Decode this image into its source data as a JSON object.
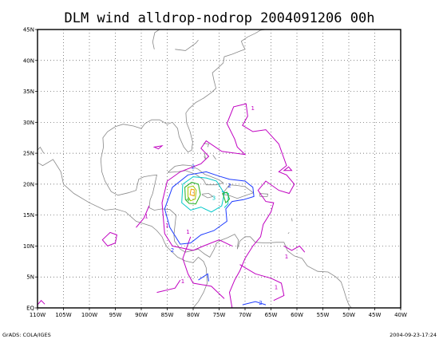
{
  "title": "DLM wind alldrop-nodrop 2004091206 00h",
  "footer": {
    "left": "GrADS: COLA/IGES",
    "right": "2004-09-23-17:24"
  },
  "axes": {
    "lon_labels": [
      "110W",
      "105W",
      "100W",
      "95W",
      "90W",
      "85W",
      "80W",
      "75W",
      "70W",
      "65W",
      "60W",
      "55W",
      "50W",
      "45W",
      "40W"
    ],
    "lat_labels": [
      "EQ",
      "5N",
      "10N",
      "15N",
      "20N",
      "25N",
      "30N",
      "35N",
      "40N",
      "45N"
    ],
    "lon_range": [
      -110,
      -40
    ],
    "lat_range": [
      0,
      45
    ],
    "grid": true
  },
  "colors": {
    "magenta": "#c000c0",
    "blue": "#1e3cff",
    "cyan": "#00c8c8",
    "green": "#20b020",
    "olive": "#a0c800",
    "orange": "#f0a000",
    "coast": "#888888"
  },
  "contour_labels": [
    {
      "text": "1",
      "lon": -68.5,
      "lat": 32
    },
    {
      "text": "1",
      "lon": -85,
      "lat": 13
    },
    {
      "text": "1",
      "lon": -81,
      "lat": 12
    },
    {
      "text": "1",
      "lon": -82,
      "lat": 4
    },
    {
      "text": "1",
      "lon": -64,
      "lat": 3
    },
    {
      "text": "1",
      "lon": -62,
      "lat": 8
    },
    {
      "text": "1",
      "lon": -89,
      "lat": 14.5
    },
    {
      "text": "2",
      "lon": -80,
      "lat": 22.5
    },
    {
      "text": "2",
      "lon": -73,
      "lat": 19.5
    },
    {
      "text": "2",
      "lon": -84,
      "lat": 9
    },
    {
      "text": "2",
      "lon": -67,
      "lat": 0.5
    },
    {
      "text": "3",
      "lon": -76,
      "lat": 17.5
    },
    {
      "text": "4",
      "lon": -81,
      "lat": 17.2
    }
  ]
}
